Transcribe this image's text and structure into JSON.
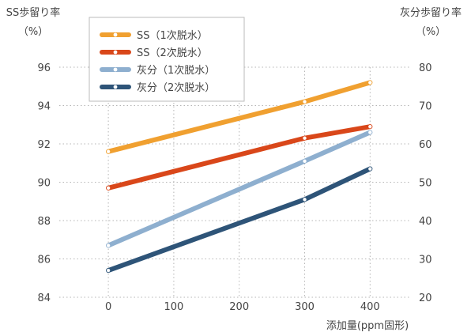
{
  "chart_data": {
    "type": "line",
    "x": [
      0,
      300,
      400
    ],
    "xticks": [
      0,
      100,
      200,
      300,
      400
    ],
    "xlim": [
      -75,
      460
    ],
    "xlabel": "添加量(ppm固形)",
    "ylabel_left": [
      "SS歩留り率",
      "（%）"
    ],
    "ylabel_right": [
      "灰分歩留り率",
      "（%）"
    ],
    "ylim_left": [
      84,
      96
    ],
    "yticks_left": [
      84,
      86,
      88,
      90,
      92,
      94,
      96
    ],
    "ylim_right": [
      20,
      80
    ],
    "yticks_right": [
      20,
      30,
      40,
      50,
      60,
      70,
      80
    ],
    "grid": "dotted",
    "legend_position": "top-left",
    "series": [
      {
        "name": "SS（1次脱水）",
        "axis": "left",
        "color": "#F0A030",
        "values": [
          91.6,
          94.2,
          95.2
        ]
      },
      {
        "name": "SS（2次脱水）",
        "axis": "left",
        "color": "#D9471A",
        "values": [
          89.7,
          92.3,
          92.9
        ]
      },
      {
        "name": "灰分（1次脱水）",
        "axis": "right",
        "color": "#8EAFCF",
        "values": [
          33.5,
          55.5,
          63
        ]
      },
      {
        "name": "灰分（2次脱水）",
        "axis": "right",
        "color": "#2E5478",
        "values": [
          27,
          45.5,
          53.5
        ]
      }
    ]
  }
}
